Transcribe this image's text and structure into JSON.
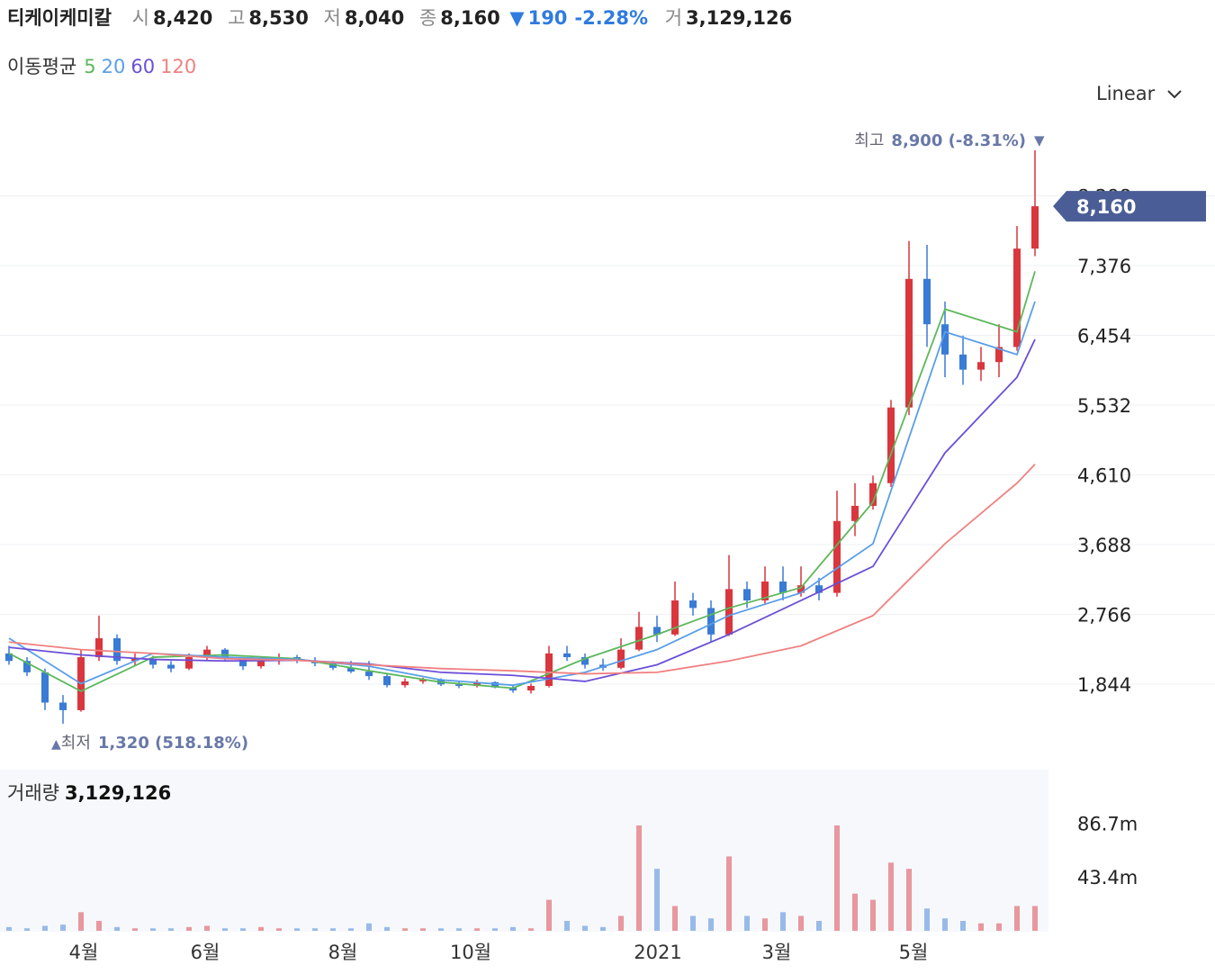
{
  "header": {
    "name": "티케이케미칼",
    "open_label": "시",
    "open": "8,420",
    "high_label": "고",
    "high": "8,530",
    "low_label": "저",
    "low": "8,040",
    "close_label": "종",
    "close": "8,160",
    "change_arrow": "▼",
    "change": "190",
    "change_pct": "-2.28%",
    "volume_label": "거",
    "volume": "3,129,126"
  },
  "ma_label": "이동평균",
  "scale_mode": "Linear",
  "chart_data": {
    "type": "candlestick",
    "x": [
      0,
      1,
      2,
      3,
      4,
      5,
      6,
      7,
      8,
      9,
      10,
      11,
      12,
      13,
      14,
      15,
      16,
      17,
      18,
      19,
      20,
      21,
      22,
      23,
      24,
      25,
      26,
      27,
      28,
      29,
      30,
      31,
      32,
      33,
      34,
      35,
      36,
      37,
      38,
      39,
      40,
      41,
      42,
      43,
      44,
      45,
      46,
      47,
      48,
      49,
      50,
      51,
      52,
      53,
      54,
      55,
      56,
      57
    ],
    "open": [
      2250,
      2150,
      2000,
      1600,
      1500,
      2200,
      2450,
      2150,
      2180,
      2100,
      2050,
      2200,
      2300,
      2180,
      2080,
      2150,
      2200,
      2150,
      2120,
      2060,
      2010,
      1950,
      1830,
      1880,
      1900,
      1840,
      1820,
      1870,
      1800,
      1760,
      1820,
      2250,
      2200,
      2100,
      2060,
      2300,
      2600,
      2500,
      2950,
      2850,
      2500,
      3100,
      2950,
      3200,
      3050,
      3150,
      3050,
      4000,
      4200,
      4500,
      5500,
      7200,
      6600,
      6200,
      6000,
      6100,
      6300,
      7600
    ],
    "high": [
      2350,
      2200,
      2050,
      1700,
      2300,
      2750,
      2500,
      2250,
      2220,
      2150,
      2250,
      2350,
      2320,
      2200,
      2200,
      2250,
      2230,
      2200,
      2150,
      2150,
      2150,
      1980,
      1920,
      1930,
      1920,
      1880,
      1900,
      1880,
      1820,
      1850,
      2350,
      2350,
      2250,
      2180,
      2450,
      2800,
      2750,
      3200,
      3050,
      2950,
      3550,
      3200,
      3400,
      3400,
      3400,
      3250,
      4400,
      4500,
      4600,
      5600,
      7700,
      7650,
      6900,
      6450,
      6300,
      6600,
      7900,
      8900
    ],
    "low": [
      2100,
      1950,
      1500,
      1320,
      1480,
      2150,
      2100,
      2080,
      2050,
      2000,
      2030,
      2150,
      2150,
      2030,
      2050,
      2100,
      2120,
      2080,
      2030,
      1990,
      1900,
      1800,
      1800,
      1850,
      1820,
      1790,
      1800,
      1790,
      1730,
      1720,
      1800,
      2150,
      2050,
      2020,
      2040,
      2280,
      2400,
      2480,
      2750,
      2400,
      2480,
      2850,
      2900,
      2950,
      3000,
      2950,
      3000,
      3800,
      4150,
      4450,
      5400,
      6300,
      5900,
      5800,
      5850,
      5900,
      6250,
      7500
    ],
    "close": [
      2150,
      2000,
      1600,
      1500,
      2200,
      2450,
      2150,
      2180,
      2100,
      2050,
      2200,
      2300,
      2180,
      2080,
      2150,
      2200,
      2150,
      2120,
      2060,
      2010,
      1950,
      1830,
      1880,
      1900,
      1840,
      1820,
      1870,
      1800,
      1760,
      1820,
      2250,
      2200,
      2100,
      2060,
      2300,
      2600,
      2500,
      2950,
      2850,
      2500,
      3100,
      2950,
      3200,
      3050,
      3150,
      3050,
      4000,
      4200,
      4500,
      5500,
      7200,
      6600,
      6200,
      6000,
      6100,
      6300,
      7600,
      8160
    ],
    "up_color": "#d9363e",
    "down_color": "#3a7bd5",
    "xlim": [
      -0.5,
      57.75
    ],
    "xticks": [
      {
        "value": 4.15,
        "label": "4월"
      },
      {
        "value": 10.9,
        "label": "6월"
      },
      {
        "value": 18.55,
        "label": "8월"
      },
      {
        "value": 25.65,
        "label": "10월"
      },
      {
        "value": 36.05,
        "label": "2021"
      },
      {
        "value": 42.65,
        "label": "3월"
      },
      {
        "value": 50.25,
        "label": "5월"
      }
    ],
    "ylim": [
      892,
      9339
    ],
    "yticks": [
      {
        "value": 1844,
        "label": "1,844"
      },
      {
        "value": 2766,
        "label": "2,766"
      },
      {
        "value": 3688,
        "label": "3,688"
      },
      {
        "value": 4610,
        "label": "4,610"
      },
      {
        "value": 5532,
        "label": "5,532"
      },
      {
        "value": 6454,
        "label": "6,454"
      },
      {
        "value": 7376,
        "label": "7,376"
      },
      {
        "value": 8298,
        "label": "8,298"
      }
    ],
    "grid": true,
    "series": [
      {
        "name": "5",
        "color": "#5cb85c",
        "x": [
          0,
          4,
          8,
          12,
          16,
          20,
          24,
          28,
          32,
          36,
          40,
          44,
          48,
          52,
          56,
          57
        ],
        "values": [
          2250,
          1750,
          2200,
          2230,
          2180,
          2020,
          1870,
          1790,
          2180,
          2500,
          2850,
          3120,
          4250,
          6800,
          6500,
          7300
        ]
      },
      {
        "name": "20",
        "color": "#5a9ee8",
        "x": [
          0,
          4,
          8,
          12,
          16,
          20,
          24,
          28,
          32,
          36,
          40,
          44,
          48,
          52,
          56,
          57
        ],
        "values": [
          2450,
          1850,
          2250,
          2200,
          2170,
          2080,
          1900,
          1830,
          2000,
          2300,
          2750,
          3050,
          3700,
          6500,
          6200,
          6900
        ]
      },
      {
        "name": "60",
        "color": "#6b4fd8",
        "x": [
          0,
          4,
          8,
          12,
          16,
          20,
          24,
          28,
          32,
          36,
          40,
          44,
          48,
          52,
          56,
          57
        ],
        "values": [
          2330,
          2230,
          2170,
          2150,
          2160,
          2110,
          2000,
          1960,
          1880,
          2100,
          2500,
          2950,
          3400,
          4900,
          5900,
          6400
        ]
      },
      {
        "name": "120",
        "color": "#f08080",
        "x": [
          0,
          4,
          8,
          12,
          16,
          20,
          24,
          28,
          32,
          36,
          40,
          44,
          48,
          52,
          56,
          57
        ],
        "values": [
          2400,
          2300,
          2250,
          2180,
          2160,
          2100,
          2050,
          2020,
          1980,
          2000,
          2150,
          2350,
          2750,
          3700,
          4500,
          4750
        ]
      }
    ],
    "annotations": {
      "high_label": "최고",
      "high_text": "8,900 (-8.31%)",
      "high_arrow": "▼",
      "low_arrow": "▲",
      "low_label": "최저",
      "low_text": "1,320 (518.18%)"
    },
    "last_price": {
      "value": 8160,
      "label": "8,160"
    },
    "volume": {
      "title": "거래량",
      "total": "3,129,126",
      "values": [
        3,
        2,
        4,
        5,
        15,
        8,
        3,
        2,
        2,
        2,
        3,
        4,
        2,
        2,
        3,
        2,
        2,
        2,
        2,
        2,
        6,
        3,
        2,
        2,
        2,
        2,
        2,
        2,
        3,
        2,
        25,
        8,
        4,
        3,
        12,
        85,
        50,
        20,
        12,
        10,
        60,
        12,
        10,
        15,
        12,
        8,
        85,
        30,
        25,
        55,
        50,
        18,
        10,
        8,
        6,
        6,
        20,
        20
      ],
      "ylim": [
        0,
        130
      ],
      "yticks": [
        {
          "value": 43.4,
          "label": "43.4m"
        },
        {
          "value": 86.7,
          "label": "86.7m"
        }
      ]
    }
  }
}
